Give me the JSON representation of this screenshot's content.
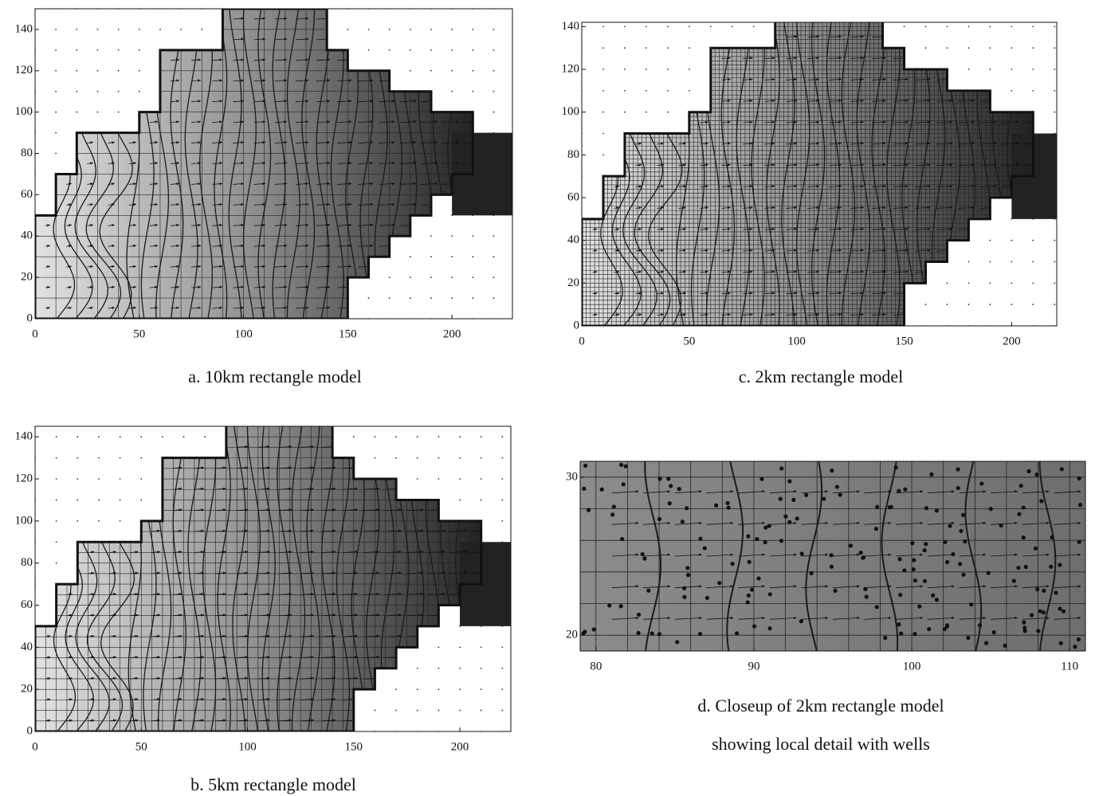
{
  "chart_data": [
    {
      "type": "contour",
      "caption": [
        "a. 10km rectangle model"
      ],
      "xlim": [
        0,
        229
      ],
      "ylim": [
        0,
        150
      ],
      "xticks": [
        0,
        50,
        100,
        150,
        200
      ],
      "yticks": [
        0,
        20,
        40,
        60,
        80,
        100,
        120,
        140
      ]
    },
    {
      "type": "contour",
      "caption": [
        "b. 5km rectangle model"
      ],
      "xlim": [
        0,
        224
      ],
      "ylim": [
        0,
        145
      ],
      "xticks": [
        0,
        50,
        100,
        150,
        200
      ],
      "yticks": [
        0,
        20,
        40,
        60,
        80,
        100,
        120,
        140
      ]
    },
    {
      "type": "contour",
      "caption": [
        "c. 2km rectangle model"
      ],
      "xlim": [
        0,
        221
      ],
      "ylim": [
        0,
        142
      ],
      "xticks": [
        0,
        50,
        100,
        150,
        200
      ],
      "yticks": [
        0,
        20,
        40,
        60,
        80,
        100,
        120,
        140
      ]
    },
    {
      "type": "closeup",
      "caption": [
        "d. Closeup of 2km rectangle model",
        "showing local detail with wells"
      ],
      "xlim": [
        79,
        111
      ],
      "ylim": [
        19,
        31
      ],
      "xticks": [
        80,
        90,
        100,
        110
      ],
      "yticks": [
        20,
        30
      ]
    }
  ]
}
